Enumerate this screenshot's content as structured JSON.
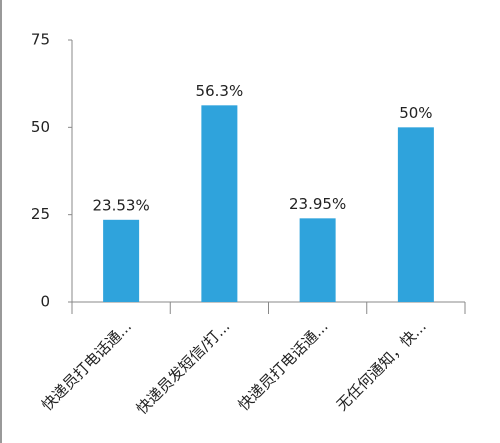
{
  "chart_data": {
    "type": "bar",
    "categories": [
      "快递员打电话通...",
      "快递员发短信/打...",
      "快递员打电话通...",
      "无任何通知，快..."
    ],
    "values": [
      23.53,
      56.3,
      23.95,
      50
    ],
    "value_labels": [
      "23.53%",
      "56.3%",
      "23.95%",
      "50%"
    ],
    "color": "#2fa3dc",
    "ylim": [
      0,
      75
    ],
    "yticks": [
      0,
      25,
      50,
      75
    ],
    "grid": false
  }
}
